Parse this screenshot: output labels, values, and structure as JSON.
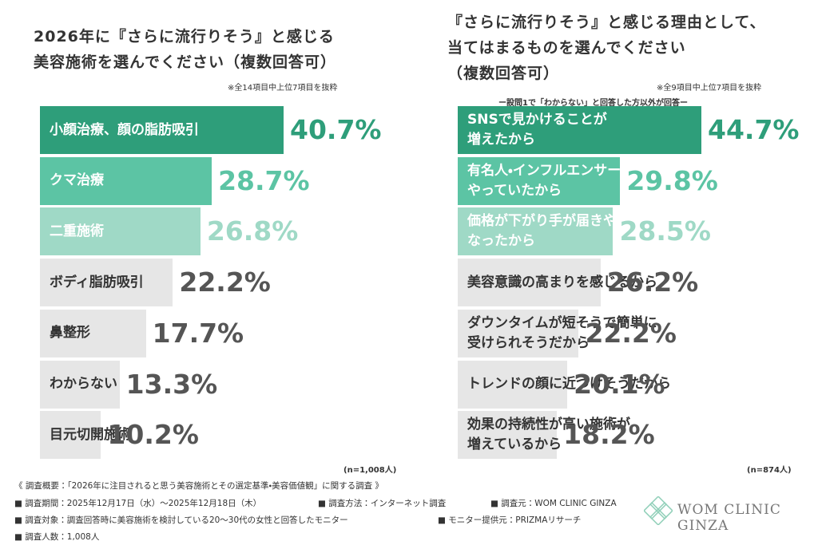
{
  "chart_data": [
    {
      "type": "bar",
      "orientation": "horizontal",
      "title": "2026年に『さらに流行りそう』と感じる\n美容施術を選んでください（複数回答可）",
      "note": "※全14項目中上位7項目を抜粋",
      "sample": "(n=1,008人)",
      "categories": [
        "小顔治療、顔の脂肪吸引",
        "クマ治療",
        "二重施術",
        "ボディ脂肪吸引",
        "鼻整形",
        "わからない",
        "目元切開施術"
      ],
      "values": [
        40.7,
        28.7,
        26.8,
        22.2,
        17.7,
        13.3,
        10.2
      ],
      "value_labels": [
        "40.7%",
        "28.7%",
        "26.8%",
        "22.2%",
        "17.7%",
        "13.3%",
        "10.2%"
      ],
      "colors": [
        "#2e9e7a",
        "#5cc4a4",
        "#9fd9c6",
        "#e6e6e6",
        "#e6e6e6",
        "#e6e6e6",
        "#e6e6e6"
      ]
    },
    {
      "type": "bar",
      "orientation": "horizontal",
      "title": "『さらに流行りそう』と感じる理由として、\n当てはまるものを選んでください\n（複数回答可）",
      "note": "※全9項目中上位7項目を抜粋",
      "subnote": "ー設問1で「わからない」と回答した方以外が回答ー",
      "sample": "(n=874人)",
      "categories": [
        "SNSで見かけることが\n増えたから",
        "有名人・インフルエンサーが\nやっていたから",
        "価格が下がり手が届きやすく\nなったから",
        "美容意識の高まりを感じるから",
        "ダウンタイムが短そうで簡単に\n受けられそうだから",
        "トレンドの顔に近づけそうだから",
        "効果の持続性が高い施術が\n増えているから"
      ],
      "values": [
        44.7,
        29.8,
        28.5,
        26.2,
        22.2,
        20.1,
        18.2
      ],
      "value_labels": [
        "44.7%",
        "29.8%",
        "28.5%",
        "26.2%",
        "22.2%",
        "20.1%",
        "18.2%"
      ],
      "colors": [
        "#2e9e7a",
        "#5cc4a4",
        "#9fd9c6",
        "#e6e6e6",
        "#e6e6e6",
        "#e6e6e6",
        "#e6e6e6"
      ]
    }
  ],
  "footer": {
    "heading": "《 調査概要：「2026年に注目されると思う美容施術とその選定基準・美容価値観」に関する調査 》",
    "period": "■ 調査期間：2025年12月17日（水）～2025年12月18日（木）",
    "method": "■ 調査方法：インターネット調査",
    "source": "■ 調査元：WOM CLINIC GINZA",
    "target": "■ 調査対象：調査回答時に美容施術を検討している20～30代の女性と回答したモニター",
    "provider": "■ モニター提供元：PRIZMAリサーチ",
    "count": "■ 調査人数：1,008人"
  },
  "logo": "WOM CLINIC GINZA"
}
